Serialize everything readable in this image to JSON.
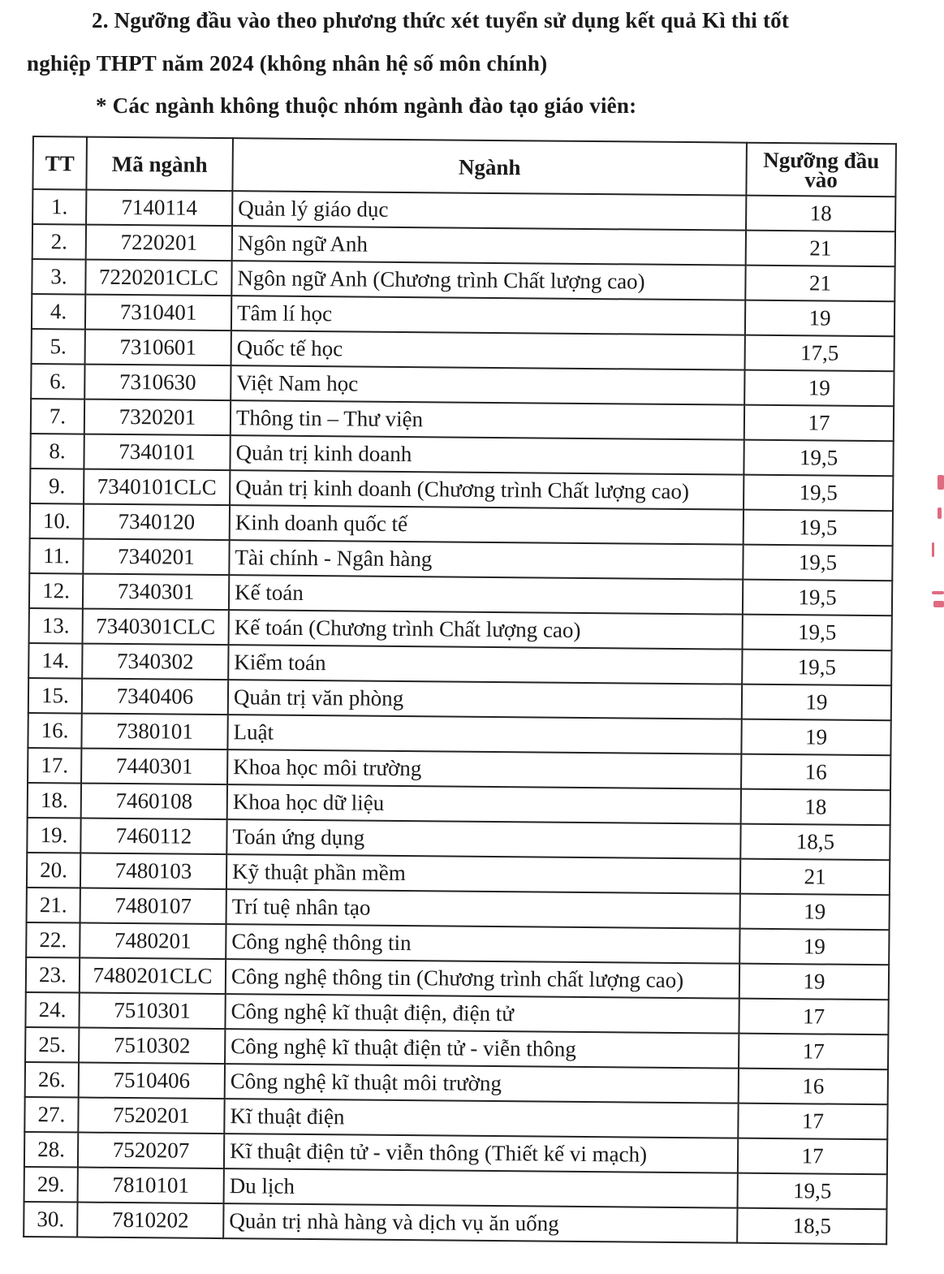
{
  "heading": {
    "line1": "2. Ngưỡng đầu vào theo phương thức xét tuyển sử dụng kết quả Kì thi tốt",
    "line2": "nghiệp THPT năm 2024 (không nhân hệ số môn chính)",
    "subheading": "* Các ngành không thuộc nhóm ngành đào tạo giáo viên:"
  },
  "table": {
    "columns": [
      "TT",
      "Mã ngành",
      "Ngành",
      "Ngưỡng đầu vào"
    ],
    "rows": [
      [
        "1.",
        "7140114",
        "Quản lý giáo dục",
        "18"
      ],
      [
        "2.",
        "7220201",
        "Ngôn ngữ Anh",
        "21"
      ],
      [
        "3.",
        "7220201CLC",
        "Ngôn ngữ Anh (Chương trình Chất lượng cao)",
        "21"
      ],
      [
        "4.",
        "7310401",
        "Tâm lí học",
        "19"
      ],
      [
        "5.",
        "7310601",
        "Quốc tế học",
        "17,5"
      ],
      [
        "6.",
        "7310630",
        "Việt Nam học",
        "19"
      ],
      [
        "7.",
        "7320201",
        "Thông tin – Thư viện",
        "17"
      ],
      [
        "8.",
        "7340101",
        "Quản trị kinh doanh",
        "19,5"
      ],
      [
        "9.",
        "7340101CLC",
        "Quản trị kinh doanh (Chương trình Chất lượng cao)",
        "19,5"
      ],
      [
        "10.",
        "7340120",
        "Kinh doanh quốc tế",
        "19,5"
      ],
      [
        "11.",
        "7340201",
        "Tài chính - Ngân hàng",
        "19,5"
      ],
      [
        "12.",
        "7340301",
        "Kế toán",
        "19,5"
      ],
      [
        "13.",
        "7340301CLC",
        "Kế toán (Chương trình Chất lượng cao)",
        "19,5"
      ],
      [
        "14.",
        "7340302",
        "Kiểm toán",
        "19,5"
      ],
      [
        "15.",
        "7340406",
        "Quản trị văn phòng",
        "19"
      ],
      [
        "16.",
        "7380101",
        "Luật",
        "19"
      ],
      [
        "17.",
        "7440301",
        "Khoa học môi trường",
        "16"
      ],
      [
        "18.",
        "7460108",
        "Khoa học dữ liệu",
        "18"
      ],
      [
        "19.",
        "7460112",
        "Toán ứng dụng",
        "18,5"
      ],
      [
        "20.",
        "7480103",
        "Kỹ thuật phần mềm",
        "21"
      ],
      [
        "21.",
        "7480107",
        "Trí tuệ nhân tạo",
        "19"
      ],
      [
        "22.",
        "7480201",
        "Công nghệ thông tin",
        "19"
      ],
      [
        "23.",
        "7480201CLC",
        "Công nghệ thông tin (Chương trình chất lượng cao)",
        "19"
      ],
      [
        "24.",
        "7510301",
        "Công nghệ kĩ thuật điện, điện tử",
        "17"
      ],
      [
        "25.",
        "7510302",
        "Công nghệ kĩ thuật điện tử - viễn thông",
        "17"
      ],
      [
        "26.",
        "7510406",
        "Công nghệ kĩ thuật môi trường",
        "16"
      ],
      [
        "27.",
        "7520201",
        "Kĩ thuật điện",
        "17"
      ],
      [
        "28.",
        "7520207",
        "Kĩ thuật điện tử - viễn thông (Thiết kế vi mạch)",
        "17"
      ],
      [
        "29.",
        "7810101",
        "Du lịch",
        "19,5"
      ],
      [
        "30.",
        "7810202",
        "Quản trị nhà hàng và dịch vụ ăn uống",
        "18,5"
      ]
    ]
  },
  "colors": {
    "text": "#1a1a1a",
    "border": "#222222",
    "stamp": "#d33a55"
  }
}
